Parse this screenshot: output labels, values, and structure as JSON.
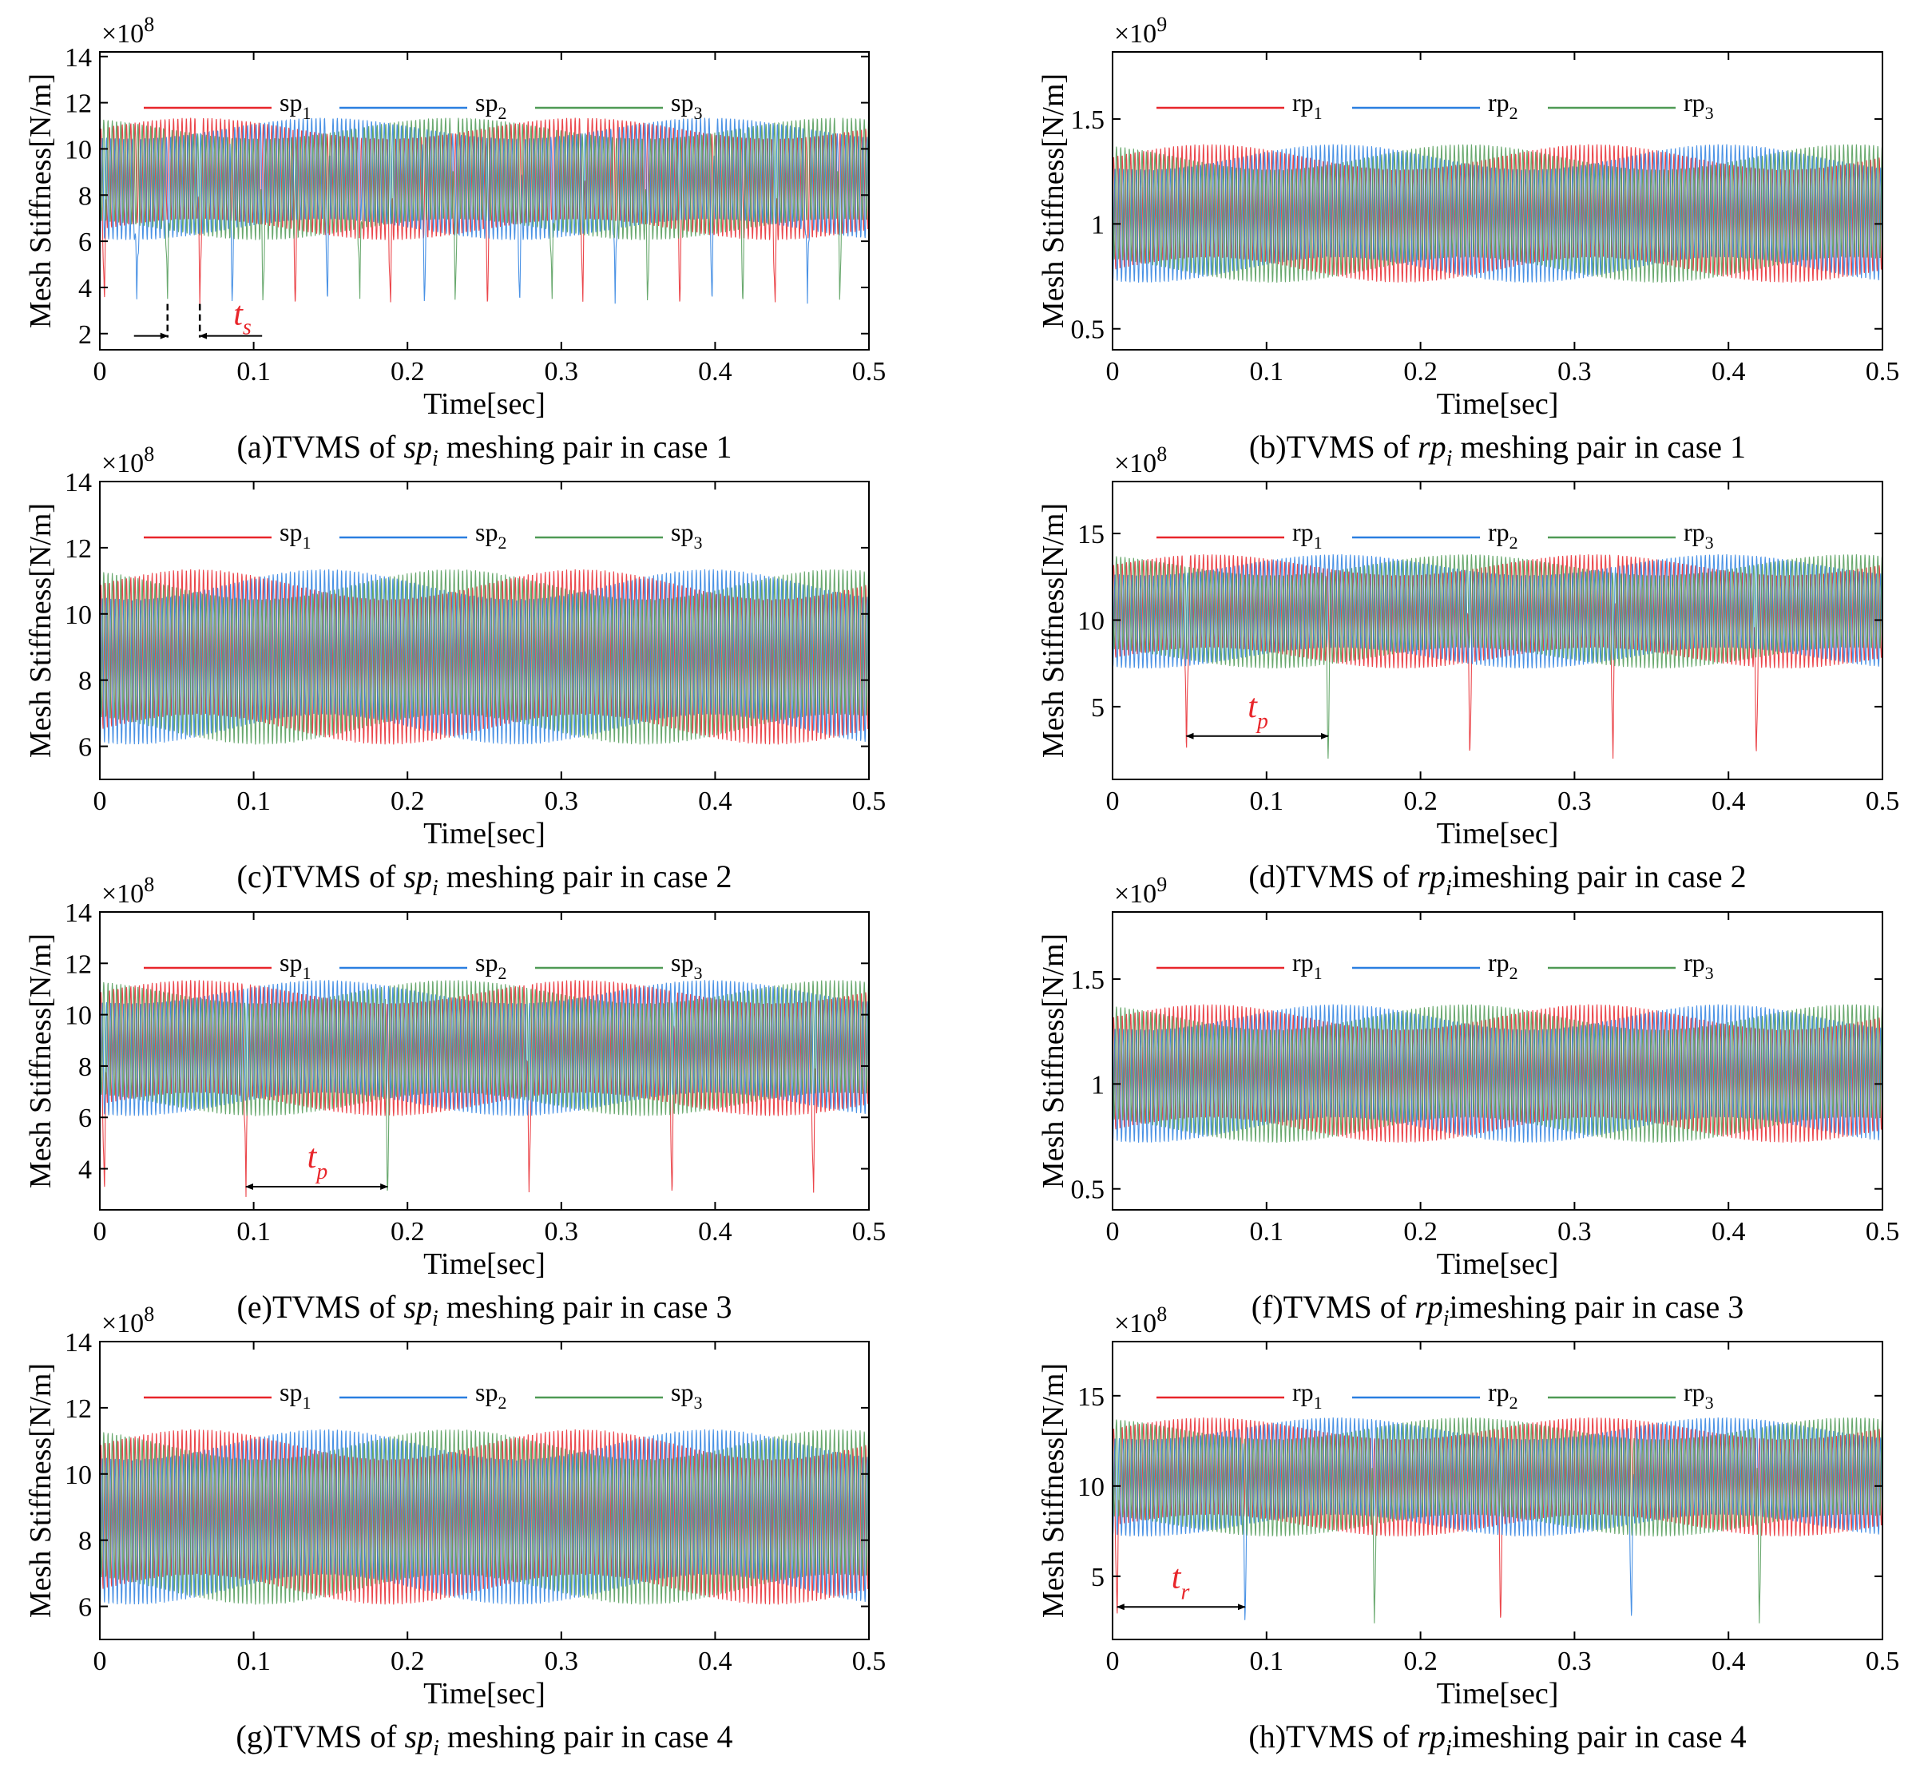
{
  "figure": {
    "xlabel": "Time[sec]",
    "ylabel": "Mesh Stiffness[N/m]",
    "colors": {
      "series1": "#e8262b",
      "series2": "#2a7fe0",
      "series3": "#4f9a55",
      "annotation": "#e8262b"
    }
  },
  "chart_data": [
    {
      "id": "a",
      "type": "line",
      "caption_prefix": "(a)TVMS of ",
      "caption_sym": "sp",
      "caption_sub": "i",
      "caption_suffix": " meshing pair in case 1",
      "exponent": "8",
      "xlim": [
        0,
        0.5
      ],
      "ylim": [
        1.3,
        14.2
      ],
      "xticks": [
        "0",
        "0.1",
        "0.2",
        "0.3",
        "0.4",
        "0.5"
      ],
      "xtick_values": [
        0,
        0.1,
        0.2,
        0.3,
        0.4,
        0.5
      ],
      "yticks": [
        "2",
        "4",
        "6",
        "8",
        "10",
        "12",
        "14"
      ],
      "ytick_values": [
        2,
        4,
        6,
        8,
        10,
        12,
        14
      ],
      "series": [
        {
          "name": "sp",
          "sub": "1"
        },
        {
          "name": "sp",
          "sub": "2"
        },
        {
          "name": "sp",
          "sub": "3"
        }
      ],
      "base": 8.7,
      "amp": 2.2,
      "mod": 0.45,
      "faults": [
        {
          "series": 0,
          "times": [
            0.003,
            0.065,
            0.127,
            0.189,
            0.252,
            0.314,
            0.377,
            0.439
          ],
          "min": 3.2
        },
        {
          "series": 1,
          "times": [
            0.024,
            0.086,
            0.148,
            0.211,
            0.273,
            0.335,
            0.398,
            0.46
          ],
          "min": 3.3
        },
        {
          "series": 2,
          "times": [
            0.044,
            0.106,
            0.169,
            0.231,
            0.294,
            0.356,
            0.418,
            0.481
          ],
          "min": 3.3
        }
      ],
      "annotation": {
        "label": "t",
        "sub": "s",
        "from": 0.044,
        "to": 0.065,
        "y": 1.9
      }
    },
    {
      "id": "b",
      "type": "line",
      "caption_prefix": "(b)TVMS of ",
      "caption_sym": "rp",
      "caption_sub": "i",
      "caption_suffix": " meshing pair in case 1",
      "exponent": "9",
      "xlim": [
        0,
        0.5
      ],
      "ylim": [
        0.4,
        1.82
      ],
      "xticks": [
        "0",
        "0.1",
        "0.2",
        "0.3",
        "0.4",
        "0.5"
      ],
      "xtick_values": [
        0,
        0.1,
        0.2,
        0.3,
        0.4,
        0.5
      ],
      "yticks": [
        "0.5",
        "1",
        "1.5"
      ],
      "ytick_values": [
        0.5,
        1.0,
        1.5
      ],
      "series": [
        {
          "name": "rp",
          "sub": "1"
        },
        {
          "name": "rp",
          "sub": "2"
        },
        {
          "name": "rp",
          "sub": "3"
        }
      ],
      "base": 1.05,
      "amp": 0.27,
      "mod": 0.06,
      "faults": []
    },
    {
      "id": "c",
      "type": "line",
      "caption_prefix": "(c)TVMS of ",
      "caption_sym": "sp",
      "caption_sub": "i",
      "caption_suffix": " meshing pair in case 2",
      "exponent": "8",
      "xlim": [
        0,
        0.5
      ],
      "ylim": [
        5,
        14
      ],
      "xticks": [
        "0",
        "0.1",
        "0.2",
        "0.3",
        "0.4",
        "0.5"
      ],
      "xtick_values": [
        0,
        0.1,
        0.2,
        0.3,
        0.4,
        0.5
      ],
      "yticks": [
        "6",
        "8",
        "10",
        "12",
        "14"
      ],
      "ytick_values": [
        6,
        8,
        10,
        12,
        14
      ],
      "series": [
        {
          "name": "sp",
          "sub": "1"
        },
        {
          "name": "sp",
          "sub": "2"
        },
        {
          "name": "sp",
          "sub": "3"
        }
      ],
      "base": 8.7,
      "amp": 2.2,
      "mod": 0.45,
      "faults": []
    },
    {
      "id": "d",
      "type": "line",
      "caption_prefix": "(d)TVMS of ",
      "caption_sym": "rp",
      "caption_sub": "i",
      "caption_suffix": "imeshing pair in case 2",
      "exponent": "8",
      "xlim": [
        0,
        0.5
      ],
      "ylim": [
        0.8,
        18
      ],
      "xticks": [
        "0",
        "0.1",
        "0.2",
        "0.3",
        "0.4",
        "0.5"
      ],
      "xtick_values": [
        0,
        0.1,
        0.2,
        0.3,
        0.4,
        0.5
      ],
      "yticks": [
        "5",
        "10",
        "15"
      ],
      "ytick_values": [
        5,
        10,
        15
      ],
      "series": [
        {
          "name": "rp",
          "sub": "1"
        },
        {
          "name": "rp",
          "sub": "2"
        },
        {
          "name": "rp",
          "sub": "3"
        }
      ],
      "base": 10.5,
      "amp": 2.7,
      "mod": 0.6,
      "faults": [
        {
          "series": 0,
          "times": [
            0.048,
            0.232,
            0.325,
            0.418
          ],
          "min": 2.0
        },
        {
          "series": 2,
          "times": [
            0.14
          ],
          "min": 2.0
        }
      ],
      "annotation": {
        "label": "t",
        "sub": "p",
        "from": 0.048,
        "to": 0.14,
        "y": 3.3
      }
    },
    {
      "id": "e",
      "type": "line",
      "caption_prefix": "(e)TVMS of ",
      "caption_sym": "sp",
      "caption_sub": "i",
      "caption_suffix": " meshing pair in case 3",
      "exponent": "8",
      "xlim": [
        0,
        0.5
      ],
      "ylim": [
        2.4,
        14
      ],
      "xticks": [
        "0",
        "0.1",
        "0.2",
        "0.3",
        "0.4",
        "0.5"
      ],
      "xtick_values": [
        0,
        0.1,
        0.2,
        0.3,
        0.4,
        0.5
      ],
      "yticks": [
        "4",
        "6",
        "8",
        "10",
        "12",
        "14"
      ],
      "ytick_values": [
        4,
        6,
        8,
        10,
        12,
        14
      ],
      "series": [
        {
          "name": "sp",
          "sub": "1"
        },
        {
          "name": "sp",
          "sub": "2"
        },
        {
          "name": "sp",
          "sub": "3"
        }
      ],
      "base": 8.7,
      "amp": 2.2,
      "mod": 0.45,
      "faults": [
        {
          "series": 0,
          "times": [
            0.003,
            0.095,
            0.279,
            0.372,
            0.464
          ],
          "min": 2.9
        },
        {
          "series": 2,
          "times": [
            0.187
          ],
          "min": 2.9
        }
      ],
      "annotation": {
        "label": "t",
        "sub": "p",
        "from": 0.095,
        "to": 0.187,
        "y": 3.3
      }
    },
    {
      "id": "f",
      "type": "line",
      "caption_prefix": "(f)TVMS of ",
      "caption_sym": "rp",
      "caption_sub": "i",
      "caption_suffix": "imeshing pair in case 3",
      "exponent": "9",
      "xlim": [
        0,
        0.5
      ],
      "ylim": [
        0.4,
        1.82
      ],
      "xticks": [
        "0",
        "0.1",
        "0.2",
        "0.3",
        "0.4",
        "0.5"
      ],
      "xtick_values": [
        0,
        0.1,
        0.2,
        0.3,
        0.4,
        0.5
      ],
      "yticks": [
        "0.5",
        "1",
        "1.5"
      ],
      "ytick_values": [
        0.5,
        1.0,
        1.5
      ],
      "series": [
        {
          "name": "rp",
          "sub": "1"
        },
        {
          "name": "rp",
          "sub": "2"
        },
        {
          "name": "rp",
          "sub": "3"
        }
      ],
      "base": 1.05,
      "amp": 0.27,
      "mod": 0.06,
      "faults": []
    },
    {
      "id": "g",
      "type": "line",
      "caption_prefix": "(g)TVMS of ",
      "caption_sym": "sp",
      "caption_sub": "i",
      "caption_suffix": " meshing pair in case 4",
      "exponent": "8",
      "xlim": [
        0,
        0.5
      ],
      "ylim": [
        5,
        14
      ],
      "xticks": [
        "0",
        "0.1",
        "0.2",
        "0.3",
        "0.4",
        "0.5"
      ],
      "xtick_values": [
        0,
        0.1,
        0.2,
        0.3,
        0.4,
        0.5
      ],
      "yticks": [
        "6",
        "8",
        "10",
        "12",
        "14"
      ],
      "ytick_values": [
        6,
        8,
        10,
        12,
        14
      ],
      "series": [
        {
          "name": "sp",
          "sub": "1"
        },
        {
          "name": "sp",
          "sub": "2"
        },
        {
          "name": "sp",
          "sub": "3"
        }
      ],
      "base": 8.7,
      "amp": 2.2,
      "mod": 0.45,
      "faults": []
    },
    {
      "id": "h",
      "type": "line",
      "caption_prefix": "(h)TVMS of ",
      "caption_sym": "rp",
      "caption_sub": "i",
      "caption_suffix": "imeshing pair in case 4",
      "exponent": "8",
      "xlim": [
        0,
        0.5
      ],
      "ylim": [
        1.5,
        18
      ],
      "xticks": [
        "0",
        "0.1",
        "0.2",
        "0.3",
        "0.4",
        "0.5"
      ],
      "xtick_values": [
        0,
        0.1,
        0.2,
        0.3,
        0.4,
        0.5
      ],
      "yticks": [
        "5",
        "10",
        "15"
      ],
      "ytick_values": [
        5,
        10,
        15
      ],
      "series": [
        {
          "name": "rp",
          "sub": "1"
        },
        {
          "name": "rp",
          "sub": "2"
        },
        {
          "name": "rp",
          "sub": "3"
        }
      ],
      "base": 10.5,
      "amp": 2.7,
      "mod": 0.6,
      "faults": [
        {
          "series": 0,
          "times": [
            0.003,
            0.252
          ],
          "min": 2.4
        },
        {
          "series": 1,
          "times": [
            0.086,
            0.337
          ],
          "min": 2.4
        },
        {
          "series": 2,
          "times": [
            0.17,
            0.42
          ],
          "min": 2.4
        }
      ],
      "annotation": {
        "label": "t",
        "sub": "r",
        "from": 0.003,
        "to": 0.086,
        "y": 3.3
      }
    }
  ]
}
